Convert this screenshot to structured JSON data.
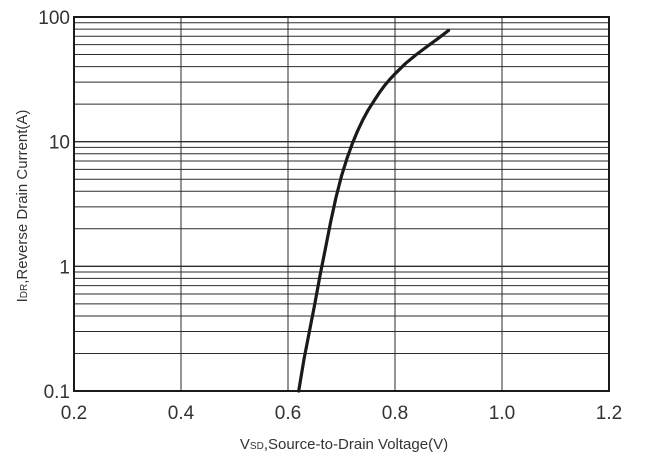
{
  "chart_data": {
    "type": "line",
    "title": "",
    "xlabel_prefix": "V",
    "xlabel_subscript": "SD",
    "xlabel_rest": ",Source-to-Drain Voltage(V)",
    "ylabel_prefix": "I",
    "ylabel_subscript": "DR",
    "ylabel_rest": ",Reverse Drain Current(A)",
    "xlim": [
      0.2,
      1.2
    ],
    "ylim": [
      0.1,
      100
    ],
    "yscale": "log",
    "grid": true,
    "x_ticks": [
      0.2,
      0.4,
      0.6,
      0.8,
      1.0,
      1.2
    ],
    "x_tick_labels": [
      "0.2",
      "0.4",
      "0.6",
      "0.8",
      "1.0",
      "1.2"
    ],
    "y_ticks": [
      0.1,
      1,
      10,
      100
    ],
    "y_tick_labels": [
      "0.1",
      "1",
      "10",
      "100"
    ],
    "series": [
      {
        "color": "#1a1a1a",
        "x": [
          0.62,
          0.63,
          0.64,
          0.65,
          0.66,
          0.67,
          0.68,
          0.69,
          0.7,
          0.71,
          0.72,
          0.73,
          0.74,
          0.75,
          0.76,
          0.77,
          0.78,
          0.79,
          0.8,
          0.82,
          0.84,
          0.86,
          0.88,
          0.9
        ],
        "y": [
          0.1,
          0.18,
          0.3,
          0.5,
          0.85,
          1.4,
          2.3,
          3.6,
          5.3,
          7.3,
          9.6,
          12.2,
          15.0,
          18.0,
          21.0,
          24.5,
          28.0,
          31.5,
          35.0,
          42.5,
          50.0,
          58.0,
          67.0,
          78.0
        ]
      }
    ]
  }
}
